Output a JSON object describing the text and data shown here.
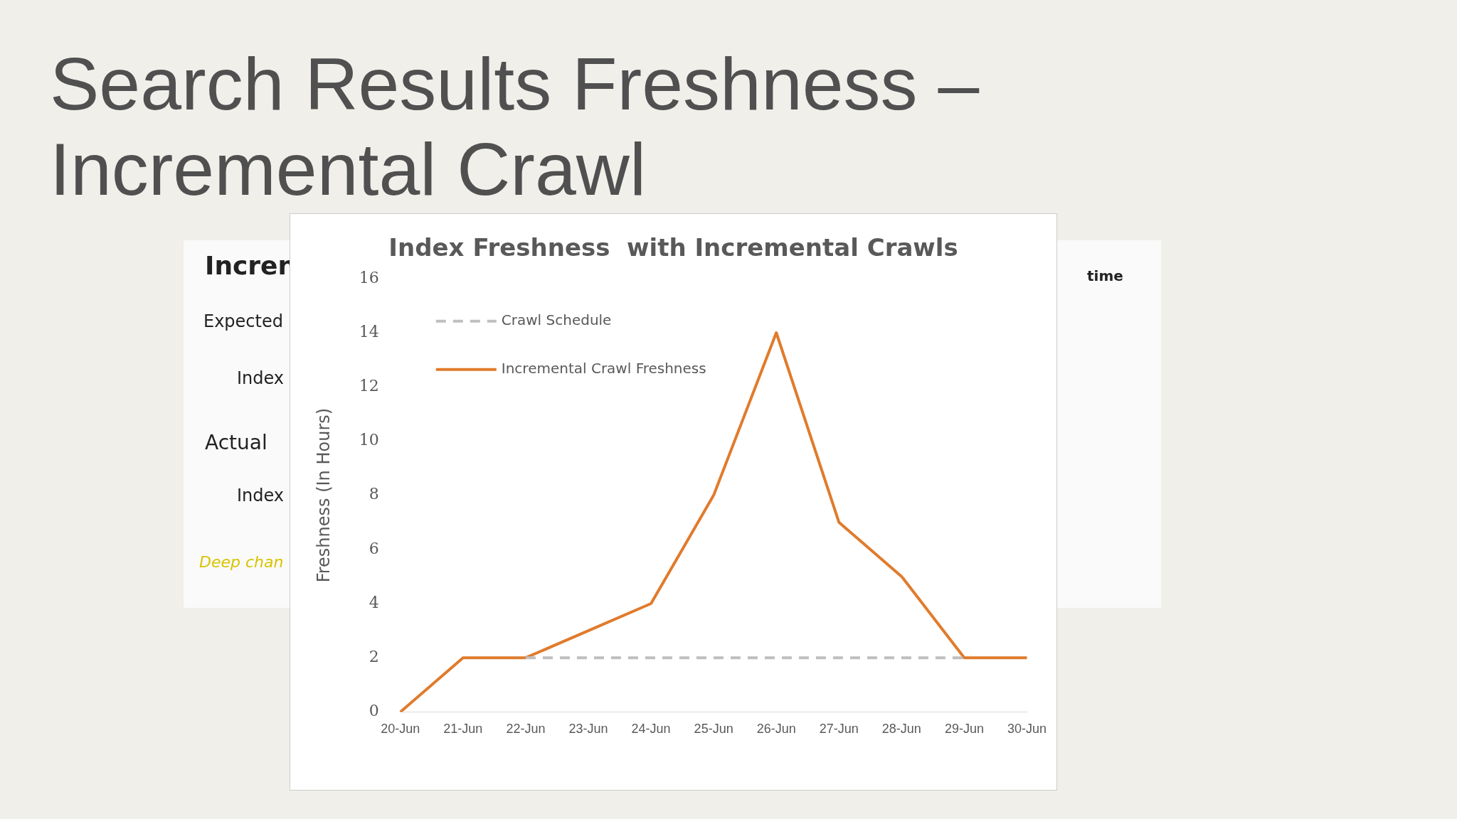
{
  "chart_data": {
    "type": "line",
    "title": "Search Results Freshness – Incremental Crawl",
    "subtitle": "Index Freshness  with Incremental Crawls",
    "ylabel": "Freshness (In Hours)",
    "categories": [
      "20-Jun",
      "21-Jun",
      "22-Jun",
      "23-Jun",
      "24-Jun",
      "25-Jun",
      "26-Jun",
      "27-Jun",
      "28-Jun",
      "29-Jun",
      "30-Jun"
    ],
    "series": [
      {
        "name": "Crawl Schedule",
        "color": "#bfbfbf",
        "line_style": "dashed",
        "values": [
          null,
          null,
          2,
          2,
          2,
          2,
          2,
          2,
          2,
          2,
          null
        ]
      },
      {
        "name": "Incremental Crawl Freshness",
        "color": "#e07b2c",
        "line_style": "solid",
        "values": [
          0,
          2,
          2,
          3,
          4,
          8,
          14,
          7,
          5,
          2,
          2
        ]
      }
    ],
    "ylim": [
      0,
      16
    ],
    "yticks": [
      0,
      2,
      4,
      6,
      8,
      10,
      12,
      14,
      16
    ],
    "grid": false,
    "legend": "top left",
    "marker": "none",
    "annotations": [
      "Incren",
      "Expected",
      "Index",
      "Actual",
      "Index",
      "Deep chan",
      "time"
    ]
  }
}
